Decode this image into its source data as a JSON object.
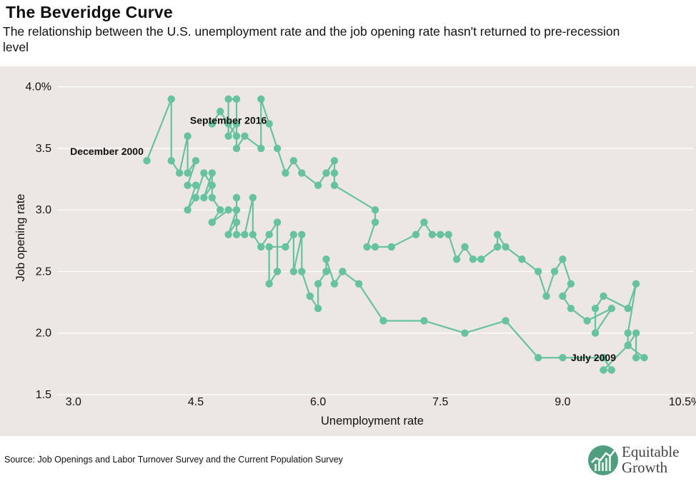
{
  "chart_data": {
    "type": "line",
    "title": "The Beveridge Curve",
    "subtitle": "The relationship between the U.S. unemployment rate and the job opening rate hasn't returned to pre-recession level",
    "xlabel": "Unemployment rate",
    "ylabel": "Job opening rate",
    "xlim": [
      2.8,
      10.6
    ],
    "ylim": [
      1.5,
      4.05
    ],
    "x_ticks": [
      "3.0",
      "4.5",
      "6.0",
      "7.5",
      "9.0",
      "10.5%"
    ],
    "x_tick_values": [
      3.0,
      4.5,
      6.0,
      7.5,
      9.0,
      10.5
    ],
    "y_ticks": [
      "1.5",
      "2.0",
      "2.5",
      "3.0",
      "3.5",
      "4.0%"
    ],
    "y_tick_values": [
      1.5,
      2.0,
      2.5,
      3.0,
      3.5,
      4.0
    ],
    "grid": "horizontal",
    "line_color": "#66c2a0",
    "annotations": [
      {
        "text": "December 2000",
        "x": 3.9,
        "y": 3.4
      },
      {
        "text": "September 2016",
        "x": 4.9,
        "y": 3.7
      },
      {
        "text": "July 2009",
        "x": 9.5,
        "y": 1.8
      }
    ],
    "series": [
      {
        "points": [
          [
            3.9,
            3.4
          ],
          [
            4.2,
            3.9
          ],
          [
            4.2,
            3.4
          ],
          [
            4.3,
            3.3
          ],
          [
            4.4,
            3.6
          ],
          [
            4.4,
            3.3
          ],
          [
            4.5,
            3.4
          ],
          [
            4.4,
            3.2
          ],
          [
            4.5,
            3.2
          ],
          [
            4.4,
            3.0
          ],
          [
            4.5,
            3.1
          ],
          [
            4.6,
            3.3
          ],
          [
            4.7,
            3.2
          ],
          [
            4.6,
            3.1
          ],
          [
            4.7,
            3.3
          ],
          [
            4.7,
            3.1
          ],
          [
            4.8,
            3.0
          ],
          [
            4.7,
            2.9
          ],
          [
            4.9,
            3.0
          ],
          [
            5.0,
            3.0
          ],
          [
            4.9,
            2.8
          ],
          [
            5.0,
            2.9
          ],
          [
            5.0,
            3.1
          ],
          [
            5.0,
            2.8
          ],
          [
            5.1,
            2.8
          ],
          [
            5.2,
            3.1
          ],
          [
            5.2,
            2.8
          ],
          [
            5.3,
            2.7
          ],
          [
            5.4,
            2.8
          ],
          [
            5.5,
            2.9
          ],
          [
            5.5,
            2.5
          ],
          [
            5.4,
            2.4
          ],
          [
            5.4,
            2.7
          ],
          [
            5.6,
            2.7
          ],
          [
            5.7,
            2.8
          ],
          [
            5.7,
            2.5
          ],
          [
            5.8,
            2.8
          ],
          [
            5.8,
            2.5
          ],
          [
            5.9,
            2.3
          ],
          [
            6.0,
            2.2
          ],
          [
            6.0,
            2.4
          ],
          [
            6.1,
            2.5
          ],
          [
            6.1,
            2.6
          ],
          [
            6.2,
            2.4
          ],
          [
            6.3,
            2.5
          ],
          [
            6.5,
            2.4
          ],
          [
            6.8,
            2.1
          ],
          [
            7.3,
            2.1
          ],
          [
            7.8,
            2.0
          ],
          [
            8.3,
            2.1
          ],
          [
            8.7,
            1.8
          ],
          [
            9.0,
            1.8
          ],
          [
            9.5,
            1.8
          ],
          [
            9.6,
            1.7
          ],
          [
            9.5,
            1.7
          ],
          [
            9.8,
            1.9
          ],
          [
            9.9,
            2.0
          ],
          [
            9.9,
            1.8
          ],
          [
            10.0,
            1.8
          ],
          [
            9.8,
            1.9
          ],
          [
            9.8,
            2.0
          ],
          [
            9.9,
            2.4
          ],
          [
            9.8,
            2.2
          ],
          [
            9.5,
            2.3
          ],
          [
            9.4,
            2.2
          ],
          [
            9.4,
            2.0
          ],
          [
            9.6,
            2.2
          ],
          [
            9.3,
            2.1
          ],
          [
            9.1,
            2.2
          ],
          [
            9.0,
            2.3
          ],
          [
            9.1,
            2.4
          ],
          [
            9.0,
            2.6
          ],
          [
            8.9,
            2.5
          ],
          [
            8.8,
            2.3
          ],
          [
            8.7,
            2.5
          ],
          [
            8.5,
            2.6
          ],
          [
            8.3,
            2.7
          ],
          [
            8.2,
            2.8
          ],
          [
            8.2,
            2.7
          ],
          [
            8.0,
            2.6
          ],
          [
            7.9,
            2.6
          ],
          [
            7.8,
            2.7
          ],
          [
            7.7,
            2.6
          ],
          [
            7.6,
            2.8
          ],
          [
            7.5,
            2.8
          ],
          [
            7.4,
            2.8
          ],
          [
            7.3,
            2.9
          ],
          [
            7.2,
            2.8
          ],
          [
            6.9,
            2.7
          ],
          [
            6.7,
            2.7
          ],
          [
            6.6,
            2.7
          ],
          [
            6.7,
            2.9
          ],
          [
            6.7,
            3.0
          ],
          [
            6.2,
            3.2
          ],
          [
            6.2,
            3.3
          ],
          [
            6.2,
            3.4
          ],
          [
            6.1,
            3.3
          ],
          [
            6.0,
            3.2
          ],
          [
            5.8,
            3.3
          ],
          [
            5.7,
            3.4
          ],
          [
            5.6,
            3.3
          ],
          [
            5.5,
            3.5
          ],
          [
            5.4,
            3.7
          ],
          [
            5.3,
            3.9
          ],
          [
            5.3,
            3.5
          ],
          [
            5.1,
            3.6
          ],
          [
            5.0,
            3.5
          ],
          [
            5.0,
            3.9
          ],
          [
            4.9,
            3.9
          ],
          [
            4.9,
            3.6
          ],
          [
            5.0,
            3.7
          ],
          [
            5.0,
            3.6
          ],
          [
            4.9,
            3.7
          ],
          [
            4.8,
            3.8
          ],
          [
            4.7,
            3.7
          ]
        ]
      }
    ]
  },
  "source": "Source: Job Openings and Labor Turnover Survey and the Current Population Survey",
  "logo": {
    "line1": "Equitable",
    "line2": "Growth"
  }
}
